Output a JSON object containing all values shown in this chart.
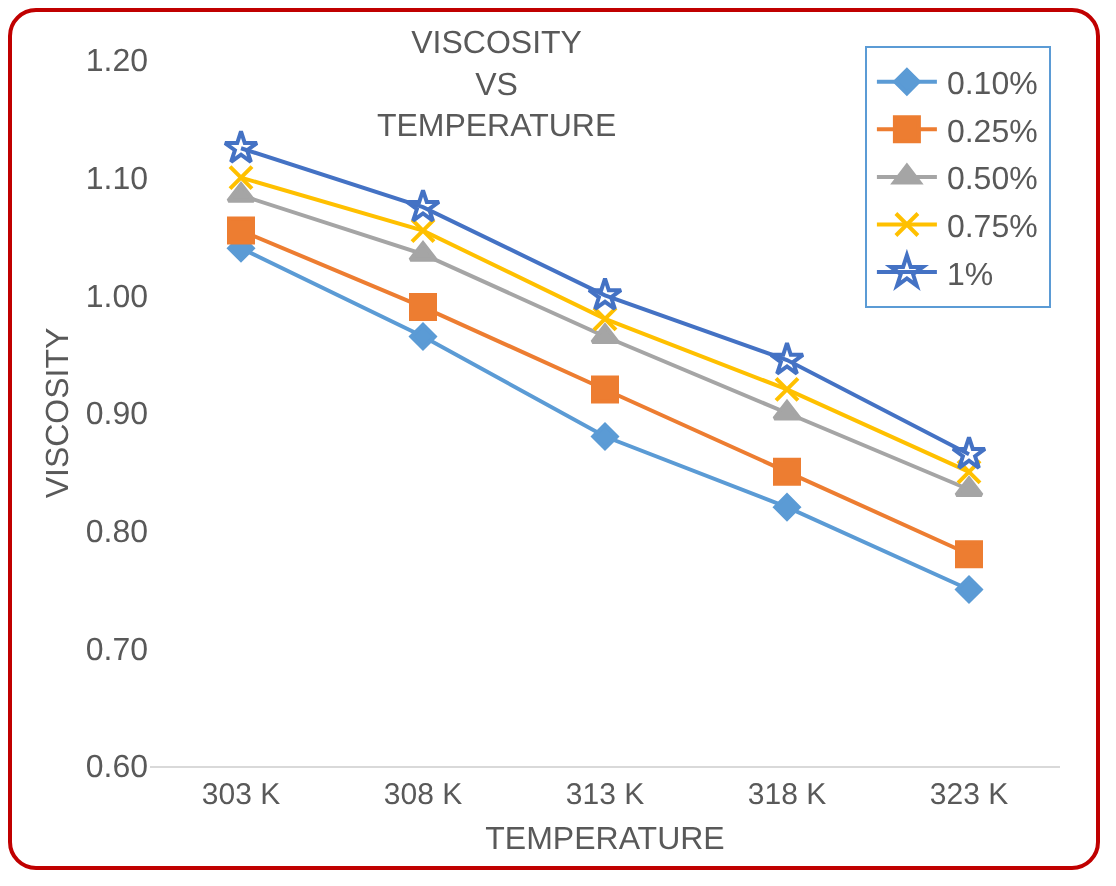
{
  "chart_data": {
    "type": "line",
    "title": "VISCOSITY\nVS\nTEMPERATURE",
    "xlabel": "TEMPERATURE",
    "ylabel": "VISCOSITY",
    "categories": [
      "303 K",
      "308 K",
      "313 K",
      "318 K",
      "323 K"
    ],
    "ylim": [
      0.6,
      1.2
    ],
    "yticks": [
      {
        "value": 0.6,
        "label": "0.60"
      },
      {
        "value": 0.7,
        "label": "0.70"
      },
      {
        "value": 0.8,
        "label": "0.80"
      },
      {
        "value": 0.9,
        "label": "0.90"
      },
      {
        "value": 1.0,
        "label": "1.00"
      },
      {
        "value": 1.1,
        "label": "1.10"
      },
      {
        "value": 1.2,
        "label": "1.20"
      }
    ],
    "grid": false,
    "legend": "top right",
    "series": [
      {
        "name": "0.10%",
        "color": "#5b9bd5",
        "marker": "diamond",
        "values": [
          1.04,
          0.965,
          0.88,
          0.82,
          0.75
        ]
      },
      {
        "name": "0.25%",
        "color": "#ed7d31",
        "marker": "square",
        "values": [
          1.055,
          0.99,
          0.92,
          0.85,
          0.78
        ]
      },
      {
        "name": "0.50%",
        "color": "#a5a5a5",
        "marker": "triangle",
        "values": [
          1.085,
          1.035,
          0.965,
          0.9,
          0.835
        ]
      },
      {
        "name": "0.75%",
        "color": "#ffc000",
        "marker": "cross",
        "values": [
          1.1,
          1.055,
          0.98,
          0.92,
          0.85
        ]
      },
      {
        "name": "1%",
        "color": "#4472c4",
        "marker": "star",
        "values": [
          1.125,
          1.075,
          1.0,
          0.945,
          0.865
        ]
      }
    ]
  }
}
